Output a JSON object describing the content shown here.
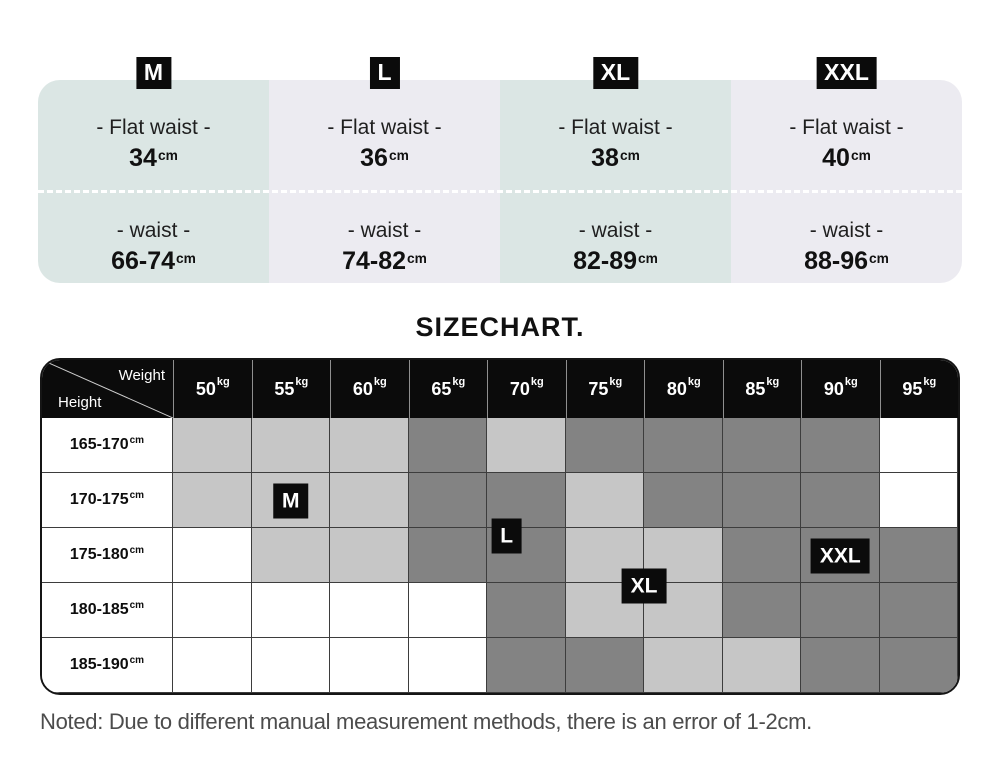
{
  "title": "SIZECHART.",
  "note": "Noted: Due to different manual measurement methods, there is an error of 1-2cm.",
  "colors": {
    "panel_teal": "#dbe6e4",
    "panel_lavender": "#ecebf1",
    "badge_black": "#0b0b0b",
    "cell_white": "#ffffff",
    "cell_light": "#c6c6c6",
    "cell_dark": "#838383"
  },
  "size_panel": {
    "columns": [
      {
        "size": "M",
        "flat_label": "- Flat waist -",
        "flat_value": "34",
        "waist_label": "- waist -",
        "waist_value": "66-74",
        "unit": "cm",
        "bg": "#dbe6e4"
      },
      {
        "size": "L",
        "flat_label": "- Flat waist -",
        "flat_value": "36",
        "waist_label": "- waist -",
        "waist_value": "74-82",
        "unit": "cm",
        "bg": "#ecebf1"
      },
      {
        "size": "XL",
        "flat_label": "- Flat waist -",
        "flat_value": "38",
        "waist_label": "- waist -",
        "waist_value": "82-89",
        "unit": "cm",
        "bg": "#dbe6e4"
      },
      {
        "size": "XXL",
        "flat_label": "- Flat waist -",
        "flat_value": "40",
        "waist_label": "- waist -",
        "waist_value": "88-96",
        "unit": "cm",
        "bg": "#ecebf1"
      }
    ]
  },
  "chart_data": {
    "type": "heatmap",
    "title": "SIZECHART.",
    "corner": {
      "weight": "Weight",
      "height": "Height"
    },
    "col_values": [
      "50",
      "55",
      "60",
      "65",
      "70",
      "75",
      "80",
      "85",
      "90",
      "95"
    ],
    "col_unit": "kg",
    "row_values": [
      "165-170",
      "170-175",
      "175-180",
      "180-185",
      "185-190"
    ],
    "row_unit": "cm",
    "shade_colors": {
      "w": "#ffffff",
      "l": "#c6c6c6",
      "d": "#838383"
    },
    "cells": [
      [
        "l",
        "l",
        "l",
        "d",
        "l",
        "d",
        "d",
        "d",
        "d",
        "w"
      ],
      [
        "l",
        "l",
        "l",
        "d",
        "d",
        "l",
        "d",
        "d",
        "d",
        "w"
      ],
      [
        "w",
        "l",
        "l",
        "d",
        "d",
        "l",
        "l",
        "d",
        "d",
        "d"
      ],
      [
        "w",
        "w",
        "w",
        "w",
        "d",
        "l",
        "l",
        "d",
        "d",
        "d"
      ],
      [
        "w",
        "w",
        "w",
        "w",
        "d",
        "d",
        "l",
        "l",
        "d",
        "d"
      ]
    ],
    "size_markers": [
      {
        "label": "M",
        "col": 2,
        "row": 2
      },
      {
        "label": "L",
        "col": 4.75,
        "row": 2.65
      },
      {
        "label": "XL",
        "col": 6.5,
        "row": 3.55
      },
      {
        "label": "XXL",
        "col": 9,
        "row": 3
      }
    ]
  }
}
